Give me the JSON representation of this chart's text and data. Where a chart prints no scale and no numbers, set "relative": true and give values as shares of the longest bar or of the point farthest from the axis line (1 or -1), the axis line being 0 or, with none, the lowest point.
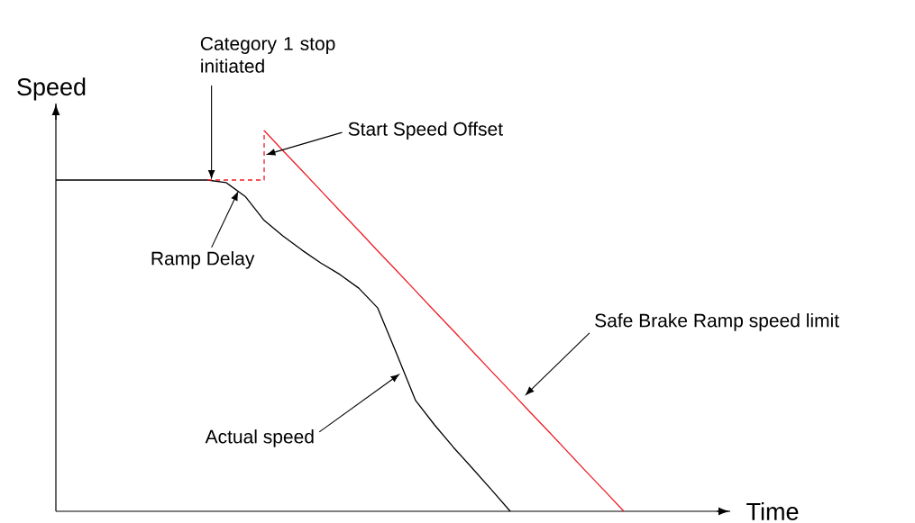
{
  "chart_data": {
    "type": "line",
    "relative": true,
    "xlabel": "Time",
    "ylabel": "Speed",
    "marker": "none",
    "categories": [
      null,
      null,
      null,
      null,
      null,
      null,
      null,
      null,
      null,
      null,
      null,
      null,
      null,
      null,
      null,
      null,
      null,
      null,
      null,
      null,
      null,
      null,
      null,
      null,
      null,
      null,
      null,
      null,
      null,
      null,
      null
    ],
    "series": [
      {
        "color": "#000000",
        "line_style": "solid",
        "values": [
          0.87,
          0.87,
          0.87,
          0.87,
          0.87,
          0.87,
          0.87,
          0.87,
          0.87,
          0.863,
          0.827,
          0.764,
          0.723,
          0.686,
          0.652,
          0.622,
          0.586,
          0.534,
          0.414,
          0.291,
          0.227,
          0.168,
          0.113,
          0.057,
          0,
          null,
          null,
          null,
          null,
          null,
          null
        ]
      },
      {
        "type": "step",
        "color": "#ee1c25",
        "line_style": "dashed",
        "values": [
          null,
          null,
          null,
          null,
          null,
          null,
          null,
          null,
          0.87,
          0.87,
          0.87,
          1,
          null,
          null,
          null,
          null,
          null,
          null,
          null,
          null,
          null,
          null,
          null,
          null,
          null,
          null,
          null,
          null,
          null,
          null,
          null
        ]
      },
      {
        "color": "#ee1c25",
        "line_style": "solid",
        "values": [
          null,
          null,
          null,
          null,
          null,
          null,
          null,
          null,
          null,
          null,
          null,
          1,
          0.947,
          0.895,
          0.842,
          0.789,
          0.737,
          0.684,
          0.632,
          0.579,
          0.526,
          0.474,
          0.421,
          0.368,
          0.316,
          0.263,
          0.211,
          0.158,
          0.105,
          0.053,
          0
        ]
      }
    ],
    "annotations": [
      "Category 1 stop initiated",
      "Start Speed Offset",
      "Ramp Delay",
      "Safe Brake Ramp speed limit",
      "Actual speed"
    ]
  }
}
